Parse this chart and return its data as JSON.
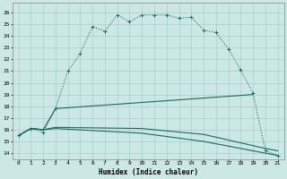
{
  "xlabel": "Humidex (Indice chaleur)",
  "bg_color": "#cce8e4",
  "grid_color": "#aacfca",
  "line_color": "#1a6b5a",
  "xlim": [
    -0.5,
    21.5
  ],
  "ylim": [
    13.5,
    26.8
  ],
  "yticks": [
    14,
    15,
    16,
    17,
    18,
    19,
    20,
    21,
    22,
    23,
    24,
    25,
    26
  ],
  "xticks": [
    0,
    1,
    2,
    3,
    4,
    5,
    6,
    7,
    8,
    9,
    10,
    11,
    12,
    13,
    14,
    15,
    16,
    17,
    18,
    19,
    20,
    21
  ],
  "main_x": [
    0,
    1,
    2,
    3,
    4,
    5,
    6,
    7,
    8,
    9,
    10,
    11,
    12,
    13,
    14,
    15,
    16,
    17,
    18,
    19,
    20,
    21
  ],
  "main_y": [
    15.5,
    16.1,
    15.8,
    17.8,
    21.0,
    22.5,
    24.8,
    24.4,
    25.8,
    25.2,
    25.8,
    25.8,
    25.8,
    25.5,
    25.6,
    24.5,
    24.3,
    22.9,
    21.1,
    19.1,
    14.2,
    13.8
  ],
  "rise_x": [
    0,
    1,
    2,
    3,
    19
  ],
  "rise_y": [
    15.5,
    16.1,
    16.0,
    17.8,
    19.0
  ],
  "flat1_x": [
    0,
    1,
    2,
    3,
    10,
    15,
    20,
    21
  ],
  "flat1_y": [
    15.5,
    16.1,
    16.0,
    16.2,
    16.1,
    15.6,
    14.4,
    14.2
  ],
  "flat2_x": [
    0,
    1,
    2,
    3,
    10,
    15,
    20,
    21
  ],
  "flat2_y": [
    15.5,
    16.1,
    16.0,
    16.1,
    15.7,
    15.0,
    14.0,
    13.8
  ]
}
